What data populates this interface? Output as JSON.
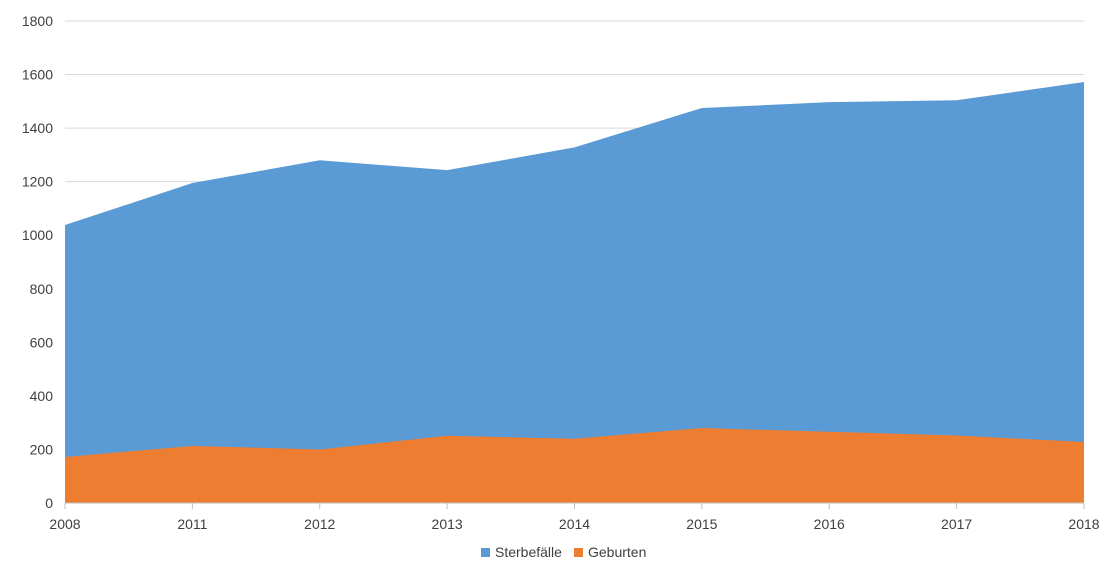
{
  "chart_data": {
    "type": "area",
    "stacked": false,
    "title": "",
    "xlabel": "",
    "ylabel": "",
    "categories": [
      "2008",
      "2011",
      "2012",
      "2013",
      "2014",
      "2015",
      "2016",
      "2017",
      "2018"
    ],
    "ylim": [
      0,
      1800
    ],
    "yticks": [
      0,
      200,
      400,
      600,
      800,
      1000,
      1200,
      1400,
      1600,
      1800
    ],
    "grid": "horizontal",
    "legend": "bottom-center",
    "series": [
      {
        "name": "Sterbefälle",
        "color": "#5b9bd5",
        "values": [
          1038,
          1195,
          1280,
          1243,
          1328,
          1475,
          1497,
          1504,
          1572
        ]
      },
      {
        "name": "Geburten",
        "color": "#ed7d31",
        "values": [
          172,
          213,
          200,
          251,
          240,
          280,
          266,
          252,
          228
        ]
      }
    ]
  }
}
